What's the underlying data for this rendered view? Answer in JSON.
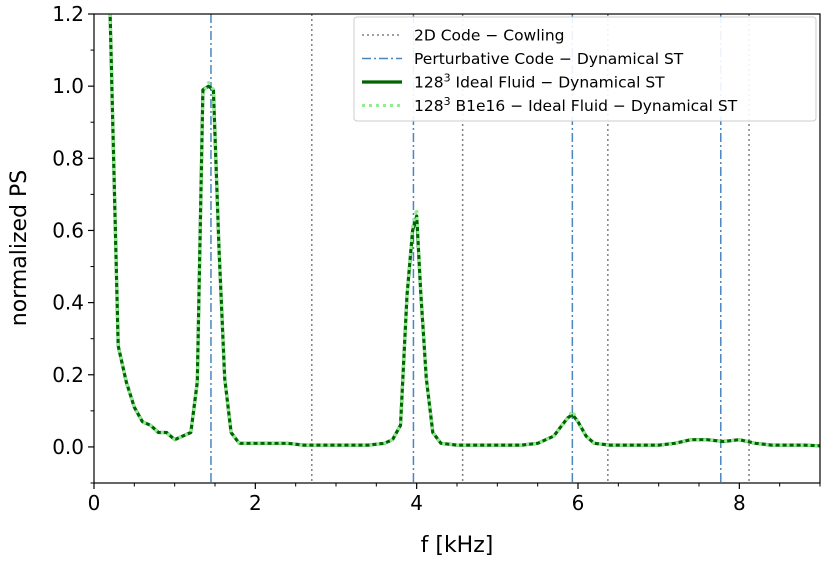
{
  "chart_data": {
    "type": "line",
    "xlabel": "f [kHz]",
    "ylabel": "normalized PS",
    "xlim": [
      0,
      9
    ],
    "ylim": [
      -0.1,
      1.2
    ],
    "x_ticks": [
      0,
      2,
      4,
      6,
      8
    ],
    "y_ticks": [
      0.0,
      0.2,
      0.4,
      0.6,
      0.8,
      1.0,
      1.2
    ],
    "x_tick_labels": [
      "0",
      "2",
      "4",
      "6",
      "8"
    ],
    "y_tick_labels": [
      "0.0",
      "0.2",
      "0.4",
      "0.6",
      "0.8",
      "1.0",
      "1.2"
    ],
    "grid": false,
    "legend_position": "top-right",
    "vlines": [
      {
        "series": "2D Code − Cowling",
        "style": "dotted",
        "color": "#808080",
        "x": [
          2.7,
          4.57,
          6.37,
          8.12
        ]
      },
      {
        "series": "Perturbative Code − Dynamical ST",
        "style": "dashdot",
        "color": "#4a86c0",
        "x": [
          1.45,
          3.96,
          5.93,
          7.77
        ]
      }
    ],
    "series": [
      {
        "name": "128³ Ideal Fluid − Dynamical ST",
        "style": "solid",
        "color": "#006400",
        "x": [
          0.2,
          0.3,
          0.4,
          0.5,
          0.6,
          0.7,
          0.8,
          0.9,
          1.0,
          1.1,
          1.2,
          1.28,
          1.35,
          1.42,
          1.48,
          1.55,
          1.62,
          1.7,
          1.8,
          2.0,
          2.2,
          2.4,
          2.6,
          2.8,
          3.0,
          3.2,
          3.4,
          3.6,
          3.7,
          3.8,
          3.88,
          3.95,
          4.0,
          4.05,
          4.12,
          4.2,
          4.3,
          4.5,
          4.7,
          4.9,
          5.1,
          5.3,
          5.5,
          5.7,
          5.8,
          5.87,
          5.93,
          6.0,
          6.1,
          6.2,
          6.4,
          6.6,
          6.8,
          7.0,
          7.2,
          7.4,
          7.6,
          7.8,
          8.0,
          8.2,
          8.4,
          8.6,
          8.8,
          9.0
        ],
        "y": [
          1.2,
          0.28,
          0.18,
          0.11,
          0.07,
          0.06,
          0.04,
          0.04,
          0.02,
          0.03,
          0.04,
          0.18,
          0.99,
          1.0,
          0.99,
          0.55,
          0.19,
          0.04,
          0.01,
          0.01,
          0.01,
          0.01,
          0.005,
          0.005,
          0.005,
          0.005,
          0.005,
          0.01,
          0.02,
          0.06,
          0.42,
          0.6,
          0.64,
          0.43,
          0.19,
          0.04,
          0.01,
          0.005,
          0.005,
          0.005,
          0.005,
          0.005,
          0.01,
          0.03,
          0.06,
          0.08,
          0.09,
          0.07,
          0.03,
          0.01,
          0.005,
          0.005,
          0.005,
          0.005,
          0.01,
          0.02,
          0.02,
          0.015,
          0.02,
          0.01,
          0.005,
          0.005,
          0.005,
          0.003
        ]
      },
      {
        "name": "128³ B1e16 − Ideal Fluid − Dynamical ST",
        "style": "dotted",
        "color": "#90ee90",
        "x": [
          0.2,
          0.3,
          0.4,
          0.5,
          0.6,
          0.7,
          0.8,
          0.9,
          1.0,
          1.1,
          1.2,
          1.28,
          1.35,
          1.42,
          1.48,
          1.55,
          1.62,
          1.7,
          1.8,
          2.0,
          2.2,
          2.4,
          2.6,
          2.8,
          3.0,
          3.2,
          3.4,
          3.6,
          3.7,
          3.8,
          3.88,
          3.95,
          4.0,
          4.05,
          4.12,
          4.2,
          4.3,
          4.5,
          4.7,
          4.9,
          5.1,
          5.3,
          5.5,
          5.7,
          5.8,
          5.87,
          5.93,
          6.0,
          6.1,
          6.2,
          6.4,
          6.6,
          6.8,
          7.0,
          7.2,
          7.4,
          7.6,
          7.8,
          8.0,
          8.2,
          8.4,
          8.6,
          8.8,
          9.0
        ],
        "y": [
          1.2,
          0.28,
          0.18,
          0.11,
          0.07,
          0.06,
          0.04,
          0.04,
          0.02,
          0.03,
          0.04,
          0.18,
          0.98,
          1.01,
          0.99,
          0.55,
          0.19,
          0.04,
          0.01,
          0.01,
          0.01,
          0.01,
          0.005,
          0.005,
          0.005,
          0.005,
          0.005,
          0.01,
          0.02,
          0.06,
          0.42,
          0.61,
          0.66,
          0.43,
          0.19,
          0.04,
          0.01,
          0.005,
          0.005,
          0.005,
          0.005,
          0.005,
          0.01,
          0.03,
          0.06,
          0.08,
          0.1,
          0.07,
          0.03,
          0.01,
          0.005,
          0.005,
          0.005,
          0.005,
          0.01,
          0.02,
          0.02,
          0.015,
          0.02,
          0.01,
          0.005,
          0.005,
          0.005,
          0.003
        ]
      }
    ]
  },
  "legend": {
    "items": [
      {
        "prefix": "2D Code − Cowling",
        "sup": "",
        "suffix": ""
      },
      {
        "prefix": "Perturbative Code − Dynamical ST",
        "sup": "",
        "suffix": ""
      },
      {
        "prefix": "128",
        "sup": "3",
        "suffix": " Ideal Fluid − Dynamical ST"
      },
      {
        "prefix": "128",
        "sup": "3",
        "suffix": " B1e16 − Ideal Fluid − Dynamical ST"
      }
    ]
  }
}
